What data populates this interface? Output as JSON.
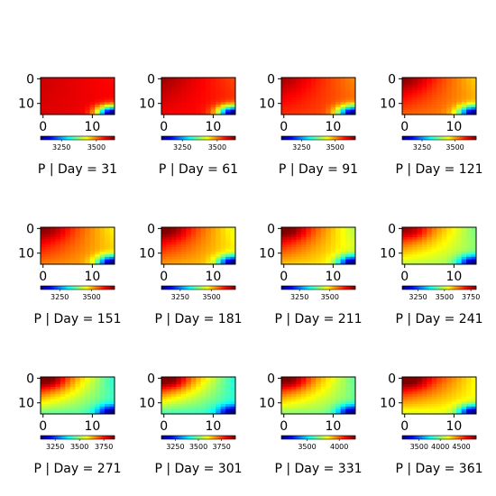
{
  "chart_data": {
    "type": "heatmap",
    "colormap": "jet",
    "grid": false,
    "x_ticks": [
      "0",
      "10"
    ],
    "y_ticks": [
      "0",
      "10"
    ],
    "rows": 15,
    "cols": 15,
    "panels": [
      {
        "title": "P | Day = 31",
        "vmin": 3100,
        "vmax": 3630,
        "cb_ticks": [
          "3250",
          "3500"
        ],
        "cb_tick_values": [
          3250,
          3500
        ],
        "field": {
          "tl": 3590,
          "tr": 3560,
          "bl": 3580,
          "br_low": 3100,
          "hot_spot": 0.0
        }
      },
      {
        "title": "P | Day = 61",
        "vmin": 3100,
        "vmax": 3630,
        "cb_ticks": [
          "3250",
          "3500"
        ],
        "cb_tick_values": [
          3250,
          3500
        ],
        "field": {
          "tl": 3610,
          "tr": 3530,
          "bl": 3570,
          "br_low": 3100,
          "hot_spot": 0.2
        }
      },
      {
        "title": "P | Day = 91",
        "vmin": 3100,
        "vmax": 3650,
        "cb_ticks": [
          "3250",
          "3500"
        ],
        "cb_tick_values": [
          3250,
          3500
        ],
        "field": {
          "tl": 3620,
          "tr": 3510,
          "bl": 3560,
          "br_low": 3100,
          "hot_spot": 0.35
        }
      },
      {
        "title": "P | Day = 121",
        "vmin": 3100,
        "vmax": 3660,
        "cb_ticks": [
          "3250",
          "3500"
        ],
        "cb_tick_values": [
          3250,
          3500
        ],
        "field": {
          "tl": 3640,
          "tr": 3480,
          "bl": 3540,
          "br_low": 3100,
          "hot_spot": 0.5
        }
      },
      {
        "title": "P | Day = 151",
        "vmin": 3100,
        "vmax": 3680,
        "cb_ticks": [
          "3250",
          "3500"
        ],
        "cb_tick_values": [
          3250,
          3500
        ],
        "field": {
          "tl": 3660,
          "tr": 3470,
          "bl": 3540,
          "br_low": 3100,
          "hot_spot": 0.6
        }
      },
      {
        "title": "P | Day = 181",
        "vmin": 3100,
        "vmax": 3690,
        "cb_ticks": [
          "3250",
          "3500"
        ],
        "cb_tick_values": [
          3250,
          3500
        ],
        "field": {
          "tl": 3680,
          "tr": 3460,
          "bl": 3530,
          "br_low": 3100,
          "hot_spot": 0.7
        }
      },
      {
        "title": "P | Day = 211",
        "vmin": 3100,
        "vmax": 3710,
        "cb_ticks": [
          "3250",
          "3500"
        ],
        "cb_tick_values": [
          3250,
          3500
        ],
        "field": {
          "tl": 3700,
          "tr": 3440,
          "bl": 3520,
          "br_low": 3100,
          "hot_spot": 0.75
        }
      },
      {
        "title": "P | Day = 241",
        "vmin": 3100,
        "vmax": 3800,
        "cb_ticks": [
          "3250",
          "3500",
          "3750"
        ],
        "cb_tick_values": [
          3250,
          3500,
          3750
        ],
        "field": {
          "tl": 3750,
          "tr": 3450,
          "bl": 3500,
          "br_low": 3100,
          "hot_spot": 0.8
        }
      },
      {
        "title": "P | Day = 271",
        "vmin": 3100,
        "vmax": 3860,
        "cb_ticks": [
          "3250",
          "3500",
          "3750"
        ],
        "cb_tick_values": [
          3250,
          3500,
          3750
        ],
        "field": {
          "tl": 3840,
          "tr": 3420,
          "bl": 3470,
          "br_low": 3100,
          "hot_spot": 0.85
        }
      },
      {
        "title": "P | Day = 301",
        "vmin": 3100,
        "vmax": 3900,
        "cb_ticks": [
          "3250",
          "3500",
          "3750"
        ],
        "cb_tick_values": [
          3250,
          3500,
          3750
        ],
        "field": {
          "tl": 3880,
          "tr": 3430,
          "bl": 3460,
          "br_low": 3100,
          "hot_spot": 0.9
        }
      },
      {
        "title": "P | Day = 331",
        "vmin": 3100,
        "vmax": 4250,
        "cb_ticks": [
          "3500",
          "4000"
        ],
        "cb_tick_values": [
          3500,
          4000
        ],
        "field": {
          "tl": 4200,
          "tr": 3650,
          "bl": 3700,
          "br_low": 3100,
          "hot_spot": 0.95
        }
      },
      {
        "title": "P | Day = 361",
        "vmin": 3100,
        "vmax": 4850,
        "cb_ticks": [
          "3500",
          "4000",
          "4500"
        ],
        "cb_tick_values": [
          3500,
          4000,
          4500
        ],
        "field": {
          "tl": 4850,
          "tr": 4200,
          "bl": 4150,
          "br_low": 3100,
          "hot_spot": 1.0
        }
      }
    ]
  }
}
